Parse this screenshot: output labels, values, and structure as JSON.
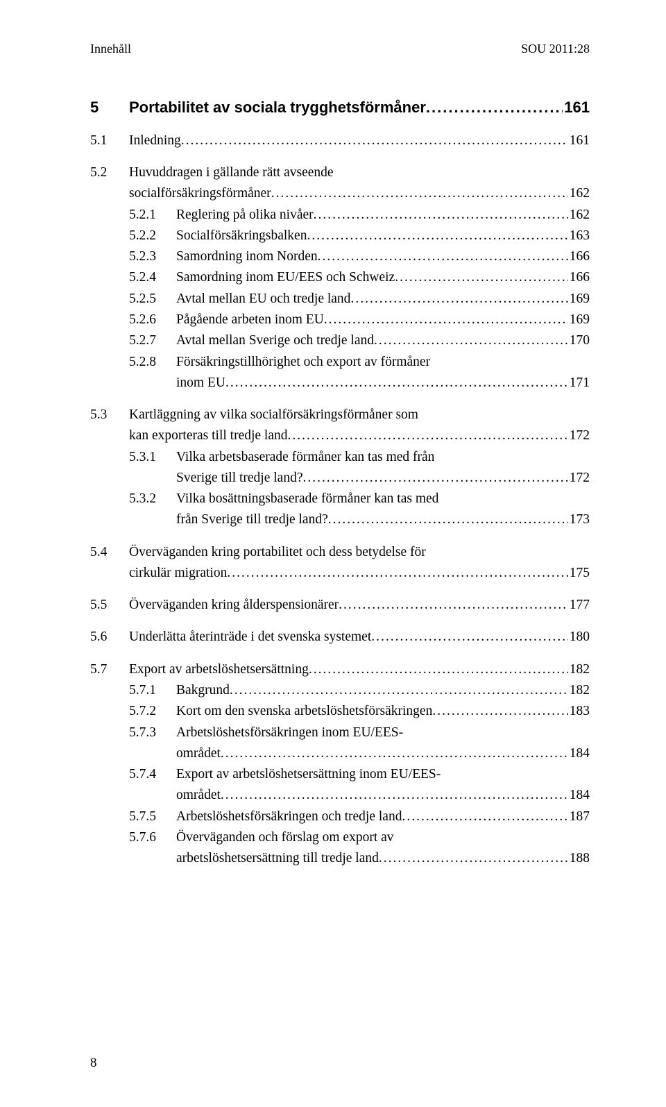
{
  "header": {
    "left": "Innehåll",
    "right": "SOU 2011:28"
  },
  "leader_dots": "...........................................................................................................................................",
  "chapter": {
    "num": "5",
    "title": "Portabilitet av sociala trygghetsförmåner",
    "page": "161"
  },
  "rows": [
    {
      "type": "l1",
      "num": "5.1",
      "text": "Inledning",
      "page": "161",
      "gap": "lg"
    },
    {
      "type": "l1-2",
      "num": "5.2",
      "line1": "Huvuddragen i gällande rätt avseende",
      "line2": "socialförsäkringsförmåner",
      "page": "162",
      "gap": "lg"
    },
    {
      "type": "l2",
      "num": "5.2.1",
      "text": "Reglering på olika nivåer",
      "page": "162"
    },
    {
      "type": "l2",
      "num": "5.2.2",
      "text": "Socialförsäkringsbalken",
      "page": "163"
    },
    {
      "type": "l2",
      "num": "5.2.3",
      "text": "Samordning inom Norden",
      "page": "166"
    },
    {
      "type": "l2",
      "num": "5.2.4",
      "text": "Samordning inom EU/EES och Schweiz",
      "page": "166"
    },
    {
      "type": "l2",
      "num": "5.2.5",
      "text": "Avtal mellan EU och tredje land",
      "page": "169"
    },
    {
      "type": "l2",
      "num": "5.2.6",
      "text": "Pågående arbeten inom EU",
      "page": "169"
    },
    {
      "type": "l2",
      "num": "5.2.7",
      "text": "Avtal mellan Sverige och tredje land",
      "page": "170"
    },
    {
      "type": "l2-2",
      "num": "5.2.8",
      "line1": "Försäkringstillhörighet och export av förmåner",
      "line2": "inom EU",
      "page": "171"
    },
    {
      "type": "l1-2",
      "num": "5.3",
      "line1": "Kartläggning av vilka socialförsäkringsförmåner som",
      "line2": "kan exporteras till tredje land",
      "page": "172",
      "gap": "lg"
    },
    {
      "type": "l2-2",
      "num": "5.3.1",
      "line1": "Vilka arbetsbaserade förmåner kan tas med från",
      "line2": "Sverige till tredje land?",
      "page": "172"
    },
    {
      "type": "l2-2",
      "num": "5.3.2",
      "line1": "Vilka bosättningsbaserade förmåner kan tas med",
      "line2": "från Sverige till tredje land?",
      "page": "173"
    },
    {
      "type": "l1-2",
      "num": "5.4",
      "line1": "Överväganden kring portabilitet och dess betydelse för",
      "line2": "cirkulär migration",
      "page": "175",
      "gap": "lg"
    },
    {
      "type": "l1",
      "num": "5.5",
      "text": "Överväganden kring ålderspensionärer",
      "page": "177",
      "gap": "lg"
    },
    {
      "type": "l1",
      "num": "5.6",
      "text": "Underlätta återinträde i det svenska systemet",
      "page": "180",
      "gap": "lg"
    },
    {
      "type": "l1",
      "num": "5.7",
      "text": "Export av arbetslöshetsersättning",
      "page": "182",
      "gap": "lg"
    },
    {
      "type": "l2",
      "num": "5.7.1",
      "text": "Bakgrund",
      "page": "182"
    },
    {
      "type": "l2",
      "num": "5.7.2",
      "text": "Kort om den svenska arbetslöshetsförsäkringen",
      "page": "183"
    },
    {
      "type": "l2-2",
      "num": "5.7.3",
      "line1": "Arbetslöshetsförsäkringen inom EU/EES-",
      "line2": "området",
      "page": "184"
    },
    {
      "type": "l2-2",
      "num": "5.7.4",
      "line1": "Export av arbetslöshetsersättning inom EU/EES-",
      "line2": "området",
      "page": "184"
    },
    {
      "type": "l2",
      "num": "5.7.5",
      "text": "Arbetslöshetsförsäkringen och tredje land",
      "page": "187"
    },
    {
      "type": "l2-2",
      "num": "5.7.6",
      "line1": "Överväganden och förslag om export av",
      "line2": "arbetslöshetsersättning till tredje land",
      "page": "188"
    }
  ],
  "footer_page": "8",
  "colors": {
    "text": "#000000",
    "background": "#ffffff"
  },
  "typography": {
    "body_font": "Georgia serif",
    "bold_font": "Arial sans-serif",
    "body_size_pt": 15,
    "title_size_pt": 16
  }
}
